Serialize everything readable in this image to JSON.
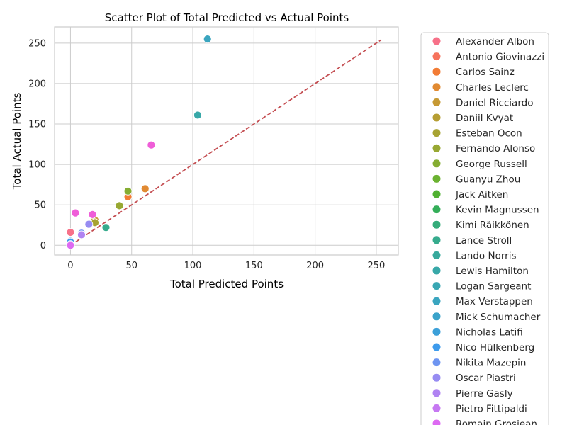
{
  "chart_data": {
    "type": "scatter",
    "title": "Scatter Plot of Total Predicted vs Actual Points",
    "xlabel": "Total Predicted Points",
    "ylabel": "Total Actual Points",
    "xlim": [
      -13,
      268
    ],
    "ylim": [
      -12,
      270
    ],
    "xticks": [
      0,
      50,
      100,
      150,
      200,
      250
    ],
    "yticks": [
      0,
      50,
      100,
      150,
      200,
      250
    ],
    "grid": true,
    "legend_position": "outside-right",
    "reference_line": {
      "style": "dashed",
      "color": "#c44e52",
      "from": [
        0,
        0
      ],
      "to": [
        254,
        254
      ]
    },
    "series": [
      {
        "name": "Alexander Albon",
        "color": "#f77189",
        "points": [
          [
            0,
            16
          ]
        ]
      },
      {
        "name": "Antonio Giovinazzi",
        "color": "#f6735d",
        "points": [
          [
            0,
            2
          ]
        ]
      },
      {
        "name": "Carlos Sainz",
        "color": "#f27c35",
        "points": [
          [
            47,
            60
          ]
        ]
      },
      {
        "name": "Charles Leclerc",
        "color": "#e18a32",
        "points": [
          [
            61,
            70
          ]
        ]
      },
      {
        "name": "Daniel Ricciardo",
        "color": "#c69934",
        "points": [
          [
            20,
            31
          ]
        ]
      },
      {
        "name": "Daniil Kvyat",
        "color": "#b69e33",
        "points": [
          [
            0,
            2
          ]
        ]
      },
      {
        "name": "Esteban Ocon",
        "color": "#a7a332",
        "points": [
          [
            20,
            28
          ]
        ]
      },
      {
        "name": "Fernando Alonso",
        "color": "#98a832",
        "points": [
          [
            40,
            49
          ]
        ]
      },
      {
        "name": "George Russell",
        "color": "#85ad32",
        "points": [
          [
            47,
            67
          ]
        ]
      },
      {
        "name": "Guanyu Zhou",
        "color": "#6bb231",
        "points": [
          [
            0,
            4
          ]
        ]
      },
      {
        "name": "Jack Aitken",
        "color": "#50b131",
        "points": [
          [
            0,
            0
          ]
        ]
      },
      {
        "name": "Kevin Magnussen",
        "color": "#34ae59",
        "points": [
          [
            0,
            2
          ]
        ]
      },
      {
        "name": "Kimi Räikkönen",
        "color": "#35ac7a",
        "points": [
          [
            0,
            3
          ]
        ]
      },
      {
        "name": "Lance Stroll",
        "color": "#36ab8d",
        "points": [
          [
            29,
            22
          ]
        ]
      },
      {
        "name": "Lando Norris",
        "color": "#37a99c",
        "points": [
          [
            0,
            4
          ]
        ]
      },
      {
        "name": "Lewis Hamilton",
        "color": "#38a8a8",
        "points": [
          [
            104,
            161
          ]
        ]
      },
      {
        "name": "Logan Sargeant",
        "color": "#39a7b3",
        "points": [
          [
            0,
            1
          ]
        ]
      },
      {
        "name": "Max Verstappen",
        "color": "#3aa5bf",
        "points": [
          [
            112,
            255
          ]
        ]
      },
      {
        "name": "Mick Schumacher",
        "color": "#3ba3ca",
        "points": [
          [
            0,
            3
          ]
        ]
      },
      {
        "name": "Nicholas Latifi",
        "color": "#3ca0d9",
        "points": [
          [
            0,
            5
          ]
        ]
      },
      {
        "name": "Nico Hülkenberg",
        "color": "#3d9bec",
        "points": [
          [
            0,
            4
          ]
        ]
      },
      {
        "name": "Nikita Mazepin",
        "color": "#6e95f1",
        "points": [
          [
            9,
            15
          ]
        ]
      },
      {
        "name": "Oscar Piastri",
        "color": "#978cf2",
        "points": [
          [
            15,
            26
          ]
        ]
      },
      {
        "name": "Pierre Gasly",
        "color": "#b083f2",
        "points": [
          [
            9,
            13
          ]
        ]
      },
      {
        "name": "Pietro Fittipaldi",
        "color": "#c678f2",
        "points": [
          [
            0,
            1
          ]
        ]
      },
      {
        "name": "Romain Grosjean",
        "color": "#dd6af2",
        "points": [
          [
            0,
            0
          ]
        ]
      },
      {
        "name": "",
        "color": "#ef5ed8",
        "points": [
          [
            18,
            38
          ],
          [
            4,
            40
          ],
          [
            66,
            124
          ]
        ]
      }
    ]
  }
}
